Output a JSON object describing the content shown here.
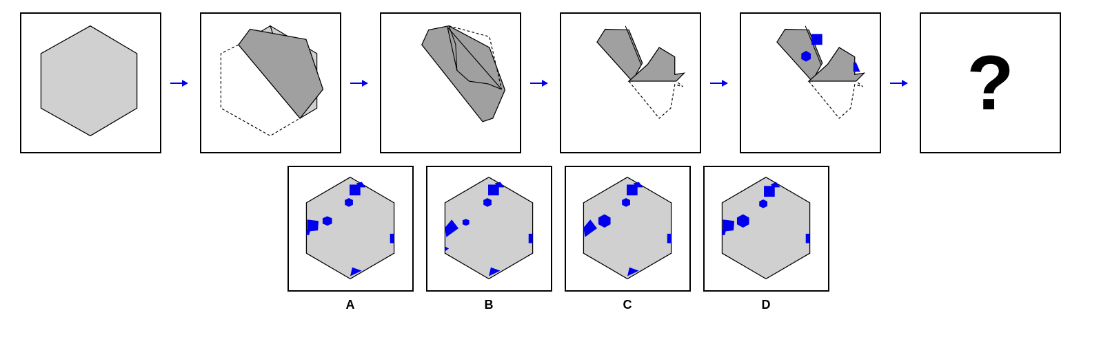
{
  "puzzle": {
    "question_mark": "?",
    "colors": {
      "paper": "#d0d0d0",
      "folded": "#a0a0a0",
      "hole": "#0000ee",
      "arrow": "#0000ee",
      "outline": "#000000"
    },
    "arrow_icon": "right-arrow-icon"
  },
  "options": [
    {
      "label": "A"
    },
    {
      "label": "B"
    },
    {
      "label": "C"
    },
    {
      "label": "D"
    }
  ]
}
